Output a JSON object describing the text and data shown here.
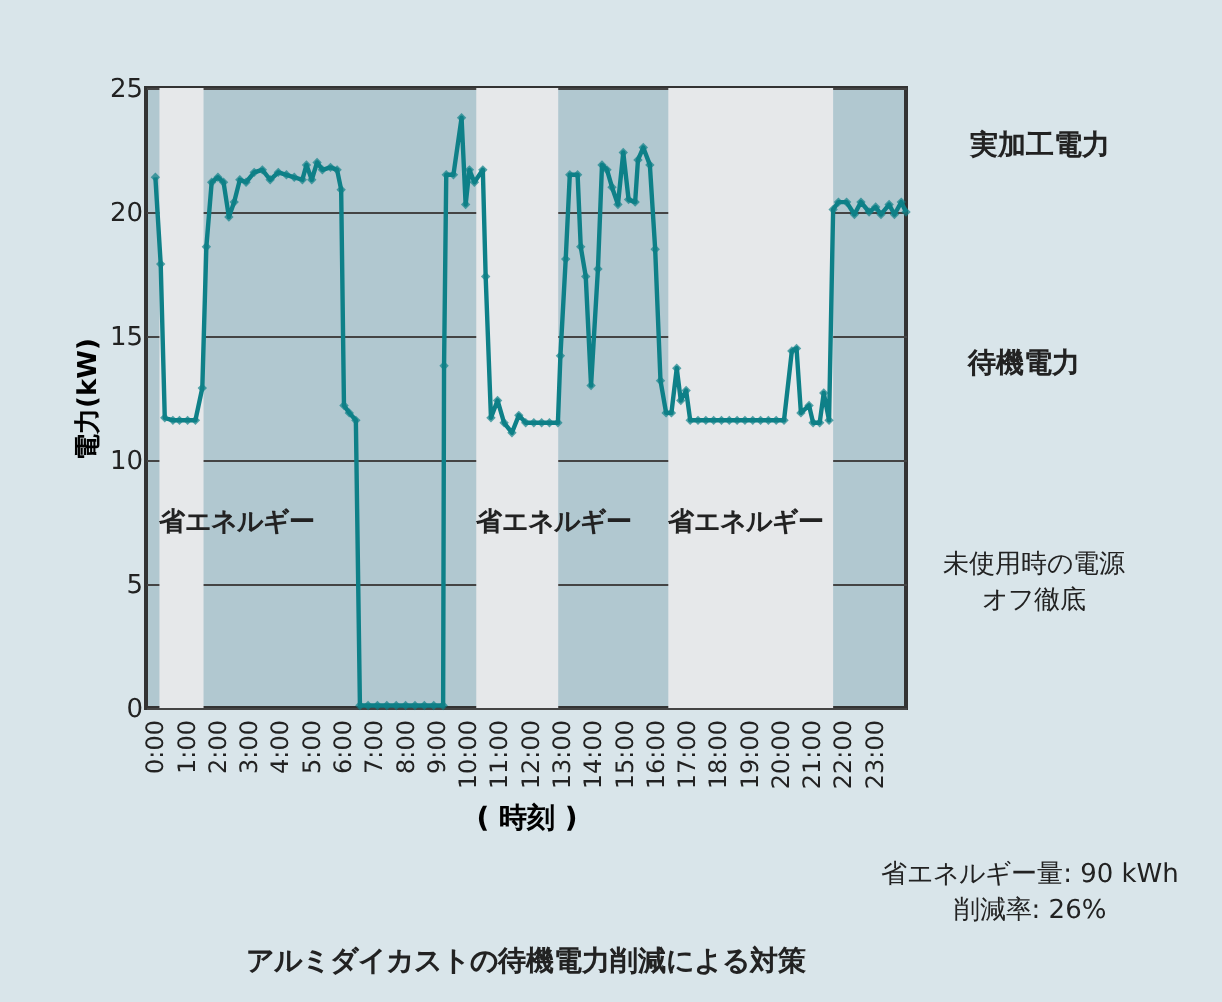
{
  "chart_data": {
    "type": "line",
    "title": "アルミダイカストの待機電力削減による対策",
    "xlabel": "( 時刻 )",
    "ylabel": "電力(kW)",
    "x": [
      0,
      0.17,
      0.3,
      0.56,
      0.77,
      1.03,
      1.28,
      1.5,
      1.63,
      1.8,
      2.0,
      2.18,
      2.35,
      2.52,
      2.7,
      2.9,
      3.16,
      3.42,
      3.67,
      3.93,
      4.19,
      4.44,
      4.7,
      4.83,
      5.0,
      5.17,
      5.34,
      5.6,
      5.81,
      5.94,
      6.03,
      6.2,
      6.41,
      6.54,
      6.8,
      7.1,
      7.4,
      7.7,
      8.0,
      8.3,
      8.6,
      8.9,
      9.2,
      9.23,
      9.3,
      9.53,
      9.79,
      9.92,
      10.04,
      10.2,
      10.47,
      10.56,
      10.73,
      10.94,
      11.15,
      11.4,
      11.62,
      11.84,
      12.1,
      12.35,
      12.6,
      12.87,
      12.95,
      13.12,
      13.25,
      13.5,
      13.6,
      13.76,
      13.93,
      14.15,
      14.28,
      14.44,
      14.6,
      14.79,
      14.96,
      15.13,
      15.34,
      15.43,
      15.6,
      15.81,
      15.98,
      16.15,
      16.33,
      16.5,
      16.67,
      16.8,
      16.97,
      17.1,
      17.35,
      17.6,
      17.85,
      18.1,
      18.35,
      18.6,
      18.85,
      19.1,
      19.35,
      19.6,
      19.85,
      20.1,
      20.35,
      20.5,
      20.64,
      20.9,
      21.03,
      21.24,
      21.37,
      21.54,
      21.67,
      21.84,
      22.1,
      22.35,
      22.56,
      22.82,
      23.03,
      23.2,
      23.46,
      23.63,
      23.85,
      24.0
    ],
    "series": [
      {
        "color": "#0e8088",
        "values": [
          21.4,
          17.9,
          11.7,
          11.6,
          11.6,
          11.6,
          11.6,
          12.9,
          18.6,
          21.2,
          21.4,
          21.2,
          19.8,
          20.4,
          21.3,
          21.2,
          21.6,
          21.7,
          21.3,
          21.6,
          21.5,
          21.4,
          21.3,
          21.9,
          21.3,
          22.0,
          21.7,
          21.8,
          21.7,
          20.9,
          12.2,
          11.9,
          11.6,
          0.1,
          0.1,
          0.1,
          0.1,
          0.1,
          0.1,
          0.1,
          0.1,
          0.1,
          0.1,
          13.8,
          21.5,
          21.5,
          23.8,
          20.3,
          21.7,
          21.2,
          21.7,
          17.4,
          11.7,
          12.4,
          11.5,
          11.1,
          11.8,
          11.5,
          11.5,
          11.5,
          11.5,
          11.5,
          14.2,
          18.1,
          21.5,
          21.5,
          18.6,
          17.4,
          13.0,
          17.7,
          21.9,
          21.7,
          21.0,
          20.3,
          22.4,
          20.5,
          20.4,
          22.1,
          22.6,
          21.9,
          18.5,
          13.2,
          11.9,
          11.9,
          13.7,
          12.4,
          12.8,
          11.6,
          11.6,
          11.6,
          11.6,
          11.6,
          11.6,
          11.6,
          11.6,
          11.6,
          11.6,
          11.6,
          11.6,
          11.6,
          14.4,
          14.5,
          11.9,
          12.2,
          11.5,
          11.5,
          12.7,
          11.6,
          20.1,
          20.4,
          20.4,
          19.9,
          20.4,
          20.0,
          20.2,
          19.9,
          20.3,
          19.9,
          20.4,
          20.0
        ]
      }
    ],
    "xlim": [
      -0.3,
      24
    ],
    "xticks": [
      {
        "value": 0,
        "label": "0:00"
      },
      {
        "value": 1,
        "label": "1:00"
      },
      {
        "value": 2,
        "label": "2:00"
      },
      {
        "value": 3,
        "label": "3:00"
      },
      {
        "value": 4,
        "label": "4:00"
      },
      {
        "value": 5,
        "label": "5:00"
      },
      {
        "value": 6,
        "label": "6:00"
      },
      {
        "value": 7,
        "label": "7:00"
      },
      {
        "value": 8,
        "label": "8:00"
      },
      {
        "value": 9,
        "label": "9:00"
      },
      {
        "value": 10,
        "label": "10:00"
      },
      {
        "value": 11,
        "label": "11:00"
      },
      {
        "value": 12,
        "label": "12:00"
      },
      {
        "value": 13,
        "label": "13:00"
      },
      {
        "value": 14,
        "label": "14:00"
      },
      {
        "value": 15,
        "label": "15:00"
      },
      {
        "value": 16,
        "label": "16:00"
      },
      {
        "value": 17,
        "label": "17:00"
      },
      {
        "value": 18,
        "label": "18:00"
      },
      {
        "value": 19,
        "label": "19:00"
      },
      {
        "value": 20,
        "label": "20:00"
      },
      {
        "value": 21,
        "label": "21:00"
      },
      {
        "value": 22,
        "label": "22:00"
      },
      {
        "value": 23,
        "label": "23:00"
      }
    ],
    "ylim": [
      0,
      25
    ],
    "yticks": [
      0,
      5,
      10,
      15,
      20,
      25
    ],
    "grid": "y",
    "marker": "diamond",
    "line_style": "solid",
    "bands": [
      {
        "axis": "x",
        "from": 0.13,
        "to": 1.54,
        "label": "省エネルギー",
        "color": "#e6e8ea"
      },
      {
        "axis": "x",
        "from": 10.26,
        "to": 12.88,
        "label": "省エネルギー",
        "color": "#e6e8ea"
      },
      {
        "axis": "x",
        "from": 16.4,
        "to": 21.67,
        "label": "省エネルギー",
        "color": "#e6e8ea"
      }
    ],
    "annotations": [
      "実加工電力",
      "待機電力",
      "未使用時の電源オフ徹底",
      "省エネルギー量: 90 kWh\n削減率: 26%"
    ]
  }
}
